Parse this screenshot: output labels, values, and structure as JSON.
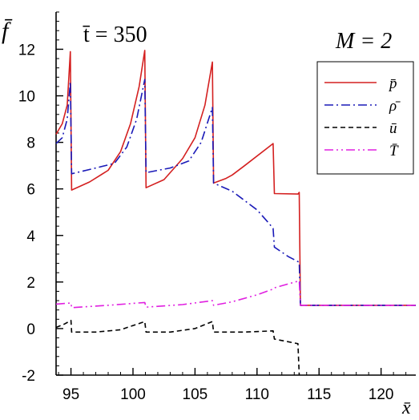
{
  "chart_data": {
    "type": "line",
    "title": "t̄ = 350",
    "annotation": "M = 2",
    "xlabel": "x̄",
    "ylabel": "f̄",
    "xlim": [
      93.8,
      122.8
    ],
    "ylim": [
      -2,
      13.6
    ],
    "xticks": [
      95,
      100,
      105,
      110,
      115,
      120
    ],
    "yticks": [
      -2,
      0,
      2,
      4,
      6,
      8,
      10,
      12
    ],
    "grid": false,
    "legend_position": "top-right",
    "series": [
      {
        "name": "p̄",
        "color": "#d42020",
        "dash": "solid",
        "points": [
          [
            93.8,
            8.35
          ],
          [
            94.3,
            8.8
          ],
          [
            94.7,
            9.6
          ],
          [
            94.95,
            11.9
          ],
          [
            95.05,
            5.95
          ],
          [
            96.5,
            6.3
          ],
          [
            98.0,
            6.8
          ],
          [
            99.0,
            7.6
          ],
          [
            99.8,
            8.8
          ],
          [
            100.5,
            10.4
          ],
          [
            100.95,
            11.95
          ],
          [
            101.05,
            6.05
          ],
          [
            102.5,
            6.4
          ],
          [
            104.0,
            7.3
          ],
          [
            105.0,
            8.2
          ],
          [
            105.8,
            9.6
          ],
          [
            106.4,
            11.45
          ],
          [
            106.5,
            6.25
          ],
          [
            107.5,
            6.45
          ],
          [
            108.0,
            6.6
          ],
          [
            109.0,
            7.0
          ],
          [
            111.3,
            7.95
          ],
          [
            111.4,
            5.8
          ],
          [
            113.3,
            5.78
          ],
          [
            113.4,
            5.85
          ],
          [
            113.5,
            1.0
          ],
          [
            122.8,
            1.0
          ]
        ]
      },
      {
        "name": "ρ̄",
        "color": "#1a1ab8",
        "dash": "dashdot",
        "points": [
          [
            93.8,
            7.95
          ],
          [
            94.3,
            8.2
          ],
          [
            94.7,
            9.0
          ],
          [
            94.95,
            10.6
          ],
          [
            95.05,
            6.65
          ],
          [
            97.0,
            6.9
          ],
          [
            98.5,
            7.1
          ],
          [
            99.5,
            7.8
          ],
          [
            100.3,
            9.0
          ],
          [
            100.95,
            10.7
          ],
          [
            101.05,
            6.7
          ],
          [
            103.0,
            6.9
          ],
          [
            104.5,
            7.2
          ],
          [
            105.5,
            8.0
          ],
          [
            106.4,
            9.5
          ],
          [
            106.5,
            6.25
          ],
          [
            108.0,
            5.9
          ],
          [
            110.0,
            5.1
          ],
          [
            111.0,
            4.5
          ],
          [
            111.3,
            4.3
          ],
          [
            111.4,
            3.5
          ],
          [
            112.5,
            3.1
          ],
          [
            113.4,
            2.85
          ],
          [
            113.5,
            1.0
          ],
          [
            122.8,
            1.0
          ]
        ]
      },
      {
        "name": "ū",
        "color": "#000000",
        "dash": "dashed",
        "points": [
          [
            93.8,
            0.05
          ],
          [
            94.5,
            0.2
          ],
          [
            95.0,
            0.35
          ],
          [
            95.05,
            -0.15
          ],
          [
            97.0,
            -0.15
          ],
          [
            99.0,
            -0.05
          ],
          [
            100.95,
            0.3
          ],
          [
            101.05,
            -0.15
          ],
          [
            103.0,
            -0.15
          ],
          [
            105.0,
            0.0
          ],
          [
            106.4,
            0.3
          ],
          [
            106.5,
            -0.15
          ],
          [
            109.0,
            -0.15
          ],
          [
            111.3,
            -0.1
          ],
          [
            111.4,
            -0.45
          ],
          [
            113.3,
            -0.65
          ],
          [
            113.4,
            -2.0
          ]
        ]
      },
      {
        "name": "T̄",
        "color": "#e020e0",
        "dash": "dashdotdot",
        "points": [
          [
            93.8,
            1.05
          ],
          [
            95.0,
            1.1
          ],
          [
            95.05,
            0.9
          ],
          [
            98.0,
            1.0
          ],
          [
            100.95,
            1.12
          ],
          [
            101.05,
            0.92
          ],
          [
            104.0,
            1.03
          ],
          [
            106.4,
            1.2
          ],
          [
            106.5,
            1.0
          ],
          [
            108.0,
            1.15
          ],
          [
            110.0,
            1.45
          ],
          [
            111.3,
            1.7
          ],
          [
            111.4,
            1.75
          ],
          [
            113.4,
            2.05
          ],
          [
            113.5,
            1.0
          ],
          [
            122.8,
            1.0
          ]
        ]
      }
    ]
  }
}
